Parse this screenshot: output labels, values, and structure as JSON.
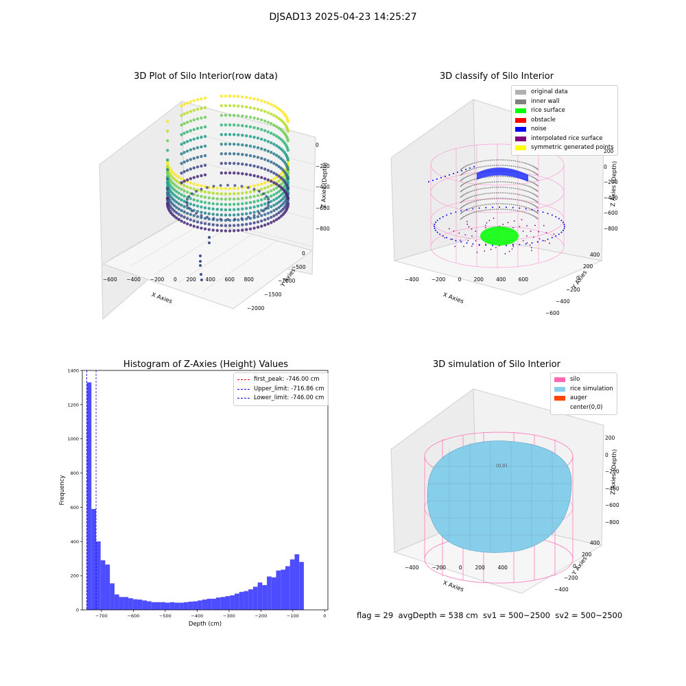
{
  "suptitle": "DJSAD13 2025-04-23 14:25:27",
  "status_text": "flag = 29  avgDepth = 538 cm  sv1 = 500~2500  sv2 = 500~2500",
  "plot1": {
    "title": "3D Plot of Silo Interior(row data)",
    "xlabel": "X Axies",
    "ylabel": "Y Axies",
    "zlabel": "Z Axies (Depth)",
    "xticks": [
      "−600",
      "−400",
      "−200",
      "0",
      "200",
      "400",
      "600",
      "800"
    ],
    "yticks": [
      "0",
      "−500",
      "−1000",
      "−1500",
      "−2000"
    ],
    "zticks": [
      "0",
      "−200",
      "−400",
      "−600",
      "−800"
    ],
    "colormap": "viridis"
  },
  "plot2": {
    "title": "3D classify of Silo Interior",
    "xlabel": "X Axies",
    "ylabel": "Y Axies",
    "zlabel": "Z Axies (Depth)",
    "xticks": [
      "−400",
      "−200",
      "0",
      "200",
      "400",
      "600"
    ],
    "yticks": [
      "400",
      "200",
      "0",
      "−200",
      "−400",
      "−600"
    ],
    "zticks": [
      "200",
      "0",
      "−200",
      "−400",
      "−600",
      "−800"
    ],
    "legend": [
      {
        "label": "original data",
        "color": "#b0b0b0"
      },
      {
        "label": "inner wall",
        "color": "#808080"
      },
      {
        "label": "rice surface",
        "color": "#00ff00"
      },
      {
        "label": "obstacle",
        "color": "#ff0000"
      },
      {
        "label": "noise",
        "color": "#0000ff"
      },
      {
        "label": "interpolated rice surface",
        "color": "#800080"
      },
      {
        "label": "symmetric generated points",
        "color": "#ffff00"
      }
    ]
  },
  "plot4": {
    "title": "3D simulation of Silo Interior",
    "xlabel": "X Axies",
    "ylabel": "Y Axies",
    "zlabel": "Z Axies (Depth)",
    "xticks": [
      "−400",
      "−200",
      "0",
      "200",
      "400"
    ],
    "yticks": [
      "400",
      "200",
      "0",
      "−200",
      "−400"
    ],
    "zticks": [
      "200",
      "0",
      "−200",
      "−400",
      "−600",
      "−800"
    ],
    "legend": [
      {
        "label": "silo",
        "color": "#ff69b4"
      },
      {
        "label": "rice simulation",
        "color": "#87ceeb"
      },
      {
        "label": "auger",
        "color": "#ff4500"
      },
      {
        "label": "center(0,0)",
        "color": "#ffffff"
      }
    ],
    "center_label": "(0,0)"
  },
  "chart_data": {
    "type": "bar",
    "title": "Histogram of Z-Axies (Height) Values",
    "xlabel": "Depth (cm)",
    "ylabel": "Frequency",
    "xlim": [
      -760,
      10
    ],
    "ylim": [
      0,
      1400
    ],
    "xticks": [
      -700,
      -600,
      -500,
      -400,
      -300,
      -200,
      -100,
      0
    ],
    "yticks": [
      0,
      200,
      400,
      600,
      800,
      1000,
      1200,
      1400
    ],
    "bar_color": "#4d4dff",
    "bin_edges_start": -746,
    "bin_width": 14.48,
    "values": [
      1330,
      590,
      400,
      290,
      265,
      155,
      90,
      75,
      75,
      68,
      62,
      60,
      55,
      50,
      45,
      45,
      45,
      42,
      45,
      42,
      42,
      45,
      48,
      50,
      55,
      60,
      65,
      65,
      72,
      75,
      80,
      85,
      95,
      105,
      110,
      120,
      135,
      160,
      145,
      195,
      190,
      230,
      235,
      255,
      295,
      325,
      280
    ],
    "lines": [
      {
        "label": "first_peak: -746.00 cm",
        "x": -746.0,
        "color": "#ff0000"
      },
      {
        "label": "Upper_limit: -716.86 cm",
        "x": -716.86,
        "color": "#0000ff"
      },
      {
        "label": "Lower_limit: -746.00 cm",
        "x": -746.0,
        "color": "#0000ff"
      }
    ]
  }
}
